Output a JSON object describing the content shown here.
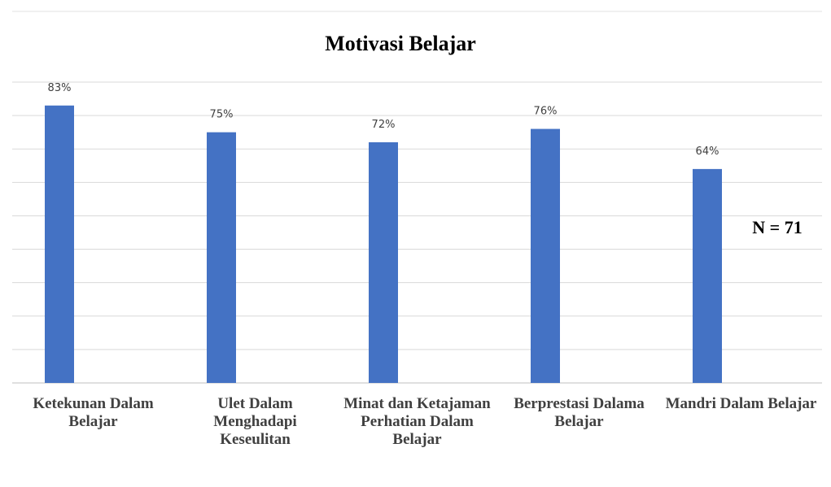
{
  "chart_data": {
    "type": "bar",
    "title": "Motivasi Belajar",
    "categories": [
      "Ketekunan Dalam Belajar",
      "Ulet Dalam Menghadapi Keseulitan",
      "Minat dan Ketajaman Perhatian Dalam Belajar",
      "Berprestasi Dalama Belajar",
      "Mandri Dalam Belajar"
    ],
    "values": [
      83,
      75,
      72,
      76,
      64
    ],
    "value_labels": [
      "83%",
      "75%",
      "72%",
      "76%",
      "64%"
    ],
    "color": "#4472c4",
    "ylim": [
      0,
      90
    ],
    "yticks": [
      0,
      10,
      20,
      30,
      40,
      50,
      60,
      70,
      80,
      90
    ],
    "grid": true,
    "annotation": "N = 71"
  }
}
